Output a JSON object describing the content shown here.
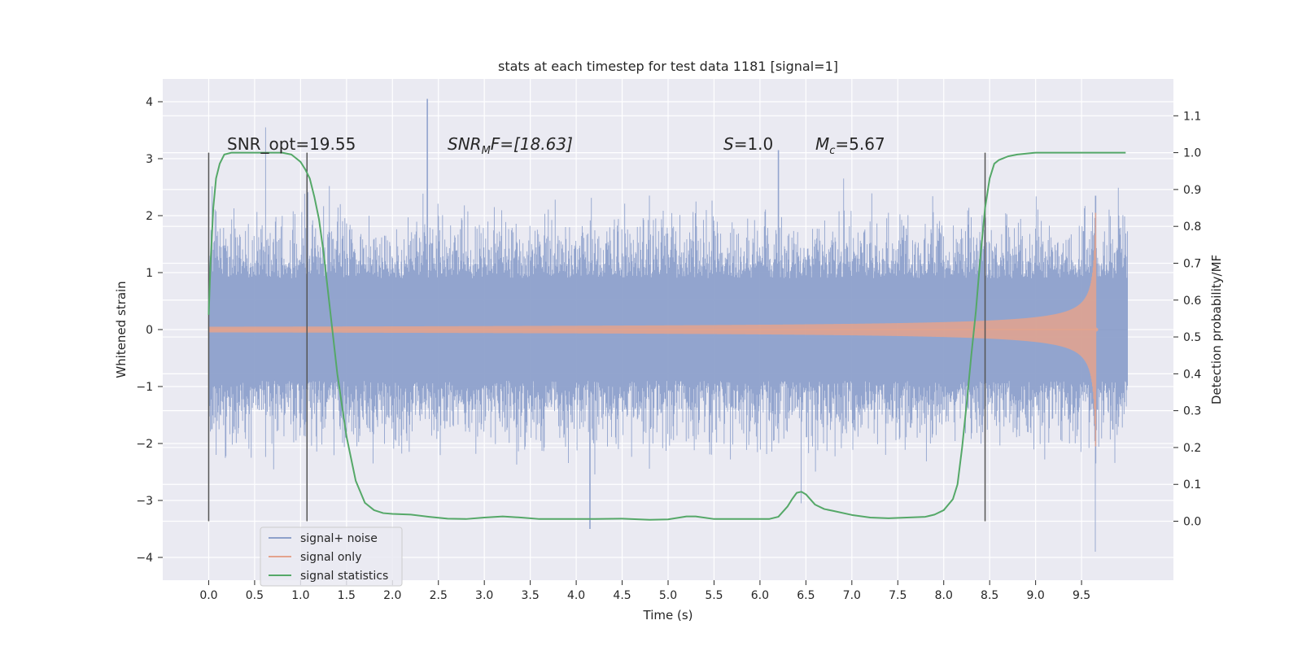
{
  "chart_data": {
    "type": "line",
    "title": "stats at each timestep for test data 1181 [signal=1]",
    "xlabel": "Time (s)",
    "ylabel": "Whitened strain",
    "ylabel_right": "Detection probability/MF",
    "xlim": [
      -0.5,
      10.5
    ],
    "ylim": [
      -4.4,
      4.4
    ],
    "ylim_right": [
      -0.16,
      1.2
    ],
    "x_ticks": [
      0.0,
      0.5,
      1.0,
      1.5,
      2.0,
      2.5,
      3.0,
      3.5,
      4.0,
      4.5,
      5.0,
      5.5,
      6.0,
      6.5,
      7.0,
      7.5,
      8.0,
      8.5,
      9.0,
      9.5
    ],
    "x_tick_labels": [
      "0.0",
      "0.5",
      "1.0",
      "1.5",
      "2.0",
      "2.5",
      "3.0",
      "3.5",
      "4.0",
      "4.5",
      "5.0",
      "5.5",
      "6.0",
      "6.5",
      "7.0",
      "7.5",
      "8.0",
      "8.5",
      "9.0",
      "9.5"
    ],
    "y_ticks": [
      -4,
      -3,
      -2,
      -1,
      0,
      1,
      2,
      3,
      4
    ],
    "y_tick_labels": [
      "−4",
      "−3",
      "−2",
      "−1",
      "0",
      "1",
      "2",
      "3",
      "4"
    ],
    "y_right_ticks": [
      0.0,
      0.1,
      0.2,
      0.3,
      0.4,
      0.5,
      0.6,
      0.7,
      0.8,
      0.9,
      1.0,
      1.1
    ],
    "y_right_tick_labels": [
      "0.0",
      "0.1",
      "0.2",
      "0.3",
      "0.4",
      "0.5",
      "0.6",
      "0.7",
      "0.8",
      "0.9",
      "1.0",
      "1.1"
    ],
    "grid": true,
    "legend_position": "lower-left",
    "annotations": {
      "snr_opt": "SNR_opt=19.55",
      "snr_mf_prefix": "SNR",
      "snr_mf_sub": "M",
      "snr_mf_suffix": "F=[18.63]",
      "s_label": "S",
      "s_value": "=1.0",
      "mc_label": "M",
      "mc_sub": "c",
      "mc_value": "=5.67"
    },
    "vertical_markers": [
      0.0,
      1.07,
      8.45
    ],
    "series": [
      {
        "name": "signal+ noise",
        "color": "#8da0cb",
        "axis": "left",
        "t_range": [
          0.0,
          10.0
        ],
        "envelope": 1.3,
        "peaks": [
          [
            0.62,
            3.55
          ],
          [
            2.38,
            4.05
          ],
          [
            4.15,
            -3.5
          ],
          [
            9.65,
            -3.9
          ],
          [
            6.45,
            -3.05
          ],
          [
            6.2,
            3.15
          ]
        ]
      },
      {
        "name": "signal only",
        "color": "#e4a38d",
        "axis": "left",
        "t_range": [
          0.0,
          9.68
        ],
        "peak_amplitude": 2.05,
        "merger_time": 9.66
      },
      {
        "name": "signal statistics",
        "color": "#55a868",
        "axis": "right",
        "x": [
          0.0,
          0.02,
          0.05,
          0.08,
          0.12,
          0.17,
          0.25,
          0.4,
          0.6,
          0.8,
          0.9,
          0.95,
          1.0,
          1.05,
          1.1,
          1.15,
          1.2,
          1.25,
          1.3,
          1.4,
          1.5,
          1.6,
          1.7,
          1.8,
          1.9,
          2.0,
          2.2,
          2.4,
          2.6,
          2.8,
          3.0,
          3.2,
          3.4,
          3.6,
          3.8,
          4.0,
          4.2,
          4.5,
          4.8,
          5.0,
          5.2,
          5.3,
          5.5,
          5.8,
          6.0,
          6.1,
          6.2,
          6.3,
          6.35,
          6.4,
          6.45,
          6.5,
          6.6,
          6.7,
          6.8,
          7.0,
          7.2,
          7.4,
          7.6,
          7.8,
          7.9,
          8.0,
          8.1,
          8.15,
          8.2,
          8.25,
          8.3,
          8.35,
          8.4,
          8.45,
          8.5,
          8.55,
          8.6,
          8.7,
          8.8,
          9.0,
          9.2,
          9.5,
          9.7,
          9.98
        ],
        "y": [
          0.56,
          0.7,
          0.85,
          0.93,
          0.97,
          0.995,
          1.0,
          1.0,
          1.0,
          1.0,
          0.995,
          0.985,
          0.975,
          0.955,
          0.93,
          0.88,
          0.82,
          0.73,
          0.62,
          0.4,
          0.23,
          0.11,
          0.05,
          0.03,
          0.022,
          0.02,
          0.018,
          0.012,
          0.007,
          0.006,
          0.01,
          0.013,
          0.01,
          0.006,
          0.006,
          0.006,
          0.006,
          0.007,
          0.004,
          0.005,
          0.013,
          0.013,
          0.006,
          0.006,
          0.006,
          0.006,
          0.012,
          0.04,
          0.06,
          0.077,
          0.08,
          0.073,
          0.045,
          0.033,
          0.028,
          0.017,
          0.01,
          0.008,
          0.01,
          0.012,
          0.018,
          0.03,
          0.06,
          0.1,
          0.2,
          0.32,
          0.45,
          0.57,
          0.72,
          0.85,
          0.93,
          0.97,
          0.98,
          0.99,
          0.995,
          1.0,
          1.0,
          1.0,
          1.0,
          1.0
        ]
      }
    ]
  }
}
